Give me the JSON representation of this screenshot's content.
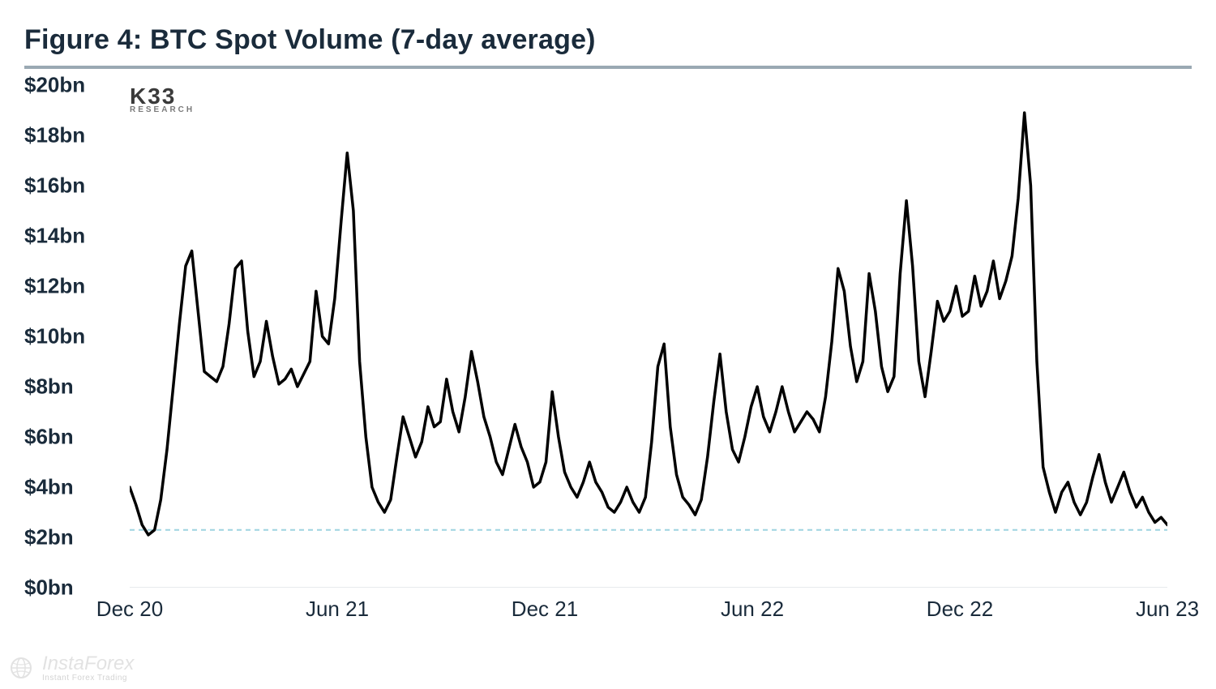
{
  "title": "Figure 4: BTC Spot Volume (7-day average)",
  "brand_main": "K33",
  "brand_sub": "RESEARCH",
  "watermark_main": "InstaForex",
  "watermark_sub": "Instant Forex Trading",
  "chart": {
    "type": "line",
    "line_color": "#000000",
    "line_width": 3.5,
    "background_color": "#ffffff",
    "title_color": "#1a2b3b",
    "title_fontsize": 34,
    "label_fontsize": 26,
    "label_color": "#1a2b3b",
    "ylim": [
      0,
      20
    ],
    "ytick_step": 2,
    "y_unit_suffix": "bn",
    "y_prefix": "$",
    "y_ticks": [
      0,
      2,
      4,
      6,
      8,
      10,
      12,
      14,
      16,
      18,
      20
    ],
    "x_ticks": [
      {
        "pos": 0,
        "label": "Dec 20"
      },
      {
        "pos": 0.2,
        "label": "Jun 21"
      },
      {
        "pos": 0.4,
        "label": "Dec 21"
      },
      {
        "pos": 0.6,
        "label": "Jun 22"
      },
      {
        "pos": 0.8,
        "label": "Dec 22"
      },
      {
        "pos": 1.0,
        "label": "Jun 23"
      }
    ],
    "reference_line": {
      "value": 2.3,
      "color": "#9ed3e0",
      "dash": "6,5",
      "width": 2
    },
    "series": [
      4.0,
      3.3,
      2.5,
      2.1,
      2.3,
      3.5,
      5.5,
      8.0,
      10.5,
      12.8,
      13.4,
      11.0,
      8.6,
      8.4,
      8.2,
      8.8,
      10.5,
      12.7,
      13.0,
      10.2,
      8.4,
      9.0,
      10.6,
      9.2,
      8.1,
      8.3,
      8.7,
      8.0,
      8.5,
      9.0,
      11.8,
      10.0,
      9.7,
      11.5,
      14.5,
      17.3,
      15.0,
      9.0,
      6.0,
      4.0,
      3.4,
      3.0,
      3.5,
      5.2,
      6.8,
      6.0,
      5.2,
      5.8,
      7.2,
      6.4,
      6.6,
      8.3,
      7.0,
      6.2,
      7.6,
      9.4,
      8.2,
      6.8,
      6.0,
      5.0,
      4.5,
      5.5,
      6.5,
      5.6,
      5.0,
      4.0,
      4.2,
      5.0,
      7.8,
      6.0,
      4.6,
      4.0,
      3.6,
      4.2,
      5.0,
      4.2,
      3.8,
      3.2,
      3.0,
      3.4,
      4.0,
      3.4,
      3.0,
      3.6,
      5.8,
      8.8,
      9.7,
      6.4,
      4.5,
      3.6,
      3.3,
      2.9,
      3.5,
      5.2,
      7.4,
      9.3,
      7.0,
      5.5,
      5.0,
      6.0,
      7.2,
      8.0,
      6.8,
      6.2,
      7.0,
      8.0,
      7.0,
      6.2,
      6.6,
      7.0,
      6.7,
      6.2,
      7.6,
      9.8,
      12.7,
      11.8,
      9.6,
      8.2,
      9.0,
      12.5,
      11.0,
      8.8,
      7.8,
      8.4,
      12.5,
      15.4,
      12.8,
      9.0,
      7.6,
      9.4,
      11.4,
      10.6,
      11.0,
      12.0,
      10.8,
      11.0,
      12.4,
      11.2,
      11.8,
      13.0,
      11.5,
      12.2,
      13.2,
      15.5,
      18.9,
      16.0,
      9.0,
      4.8,
      3.8,
      3.0,
      3.8,
      4.2,
      3.4,
      2.9,
      3.4,
      4.4,
      5.3,
      4.2,
      3.4,
      4.0,
      4.6,
      3.8,
      3.2,
      3.6,
      3.0,
      2.6,
      2.8,
      2.5
    ]
  }
}
